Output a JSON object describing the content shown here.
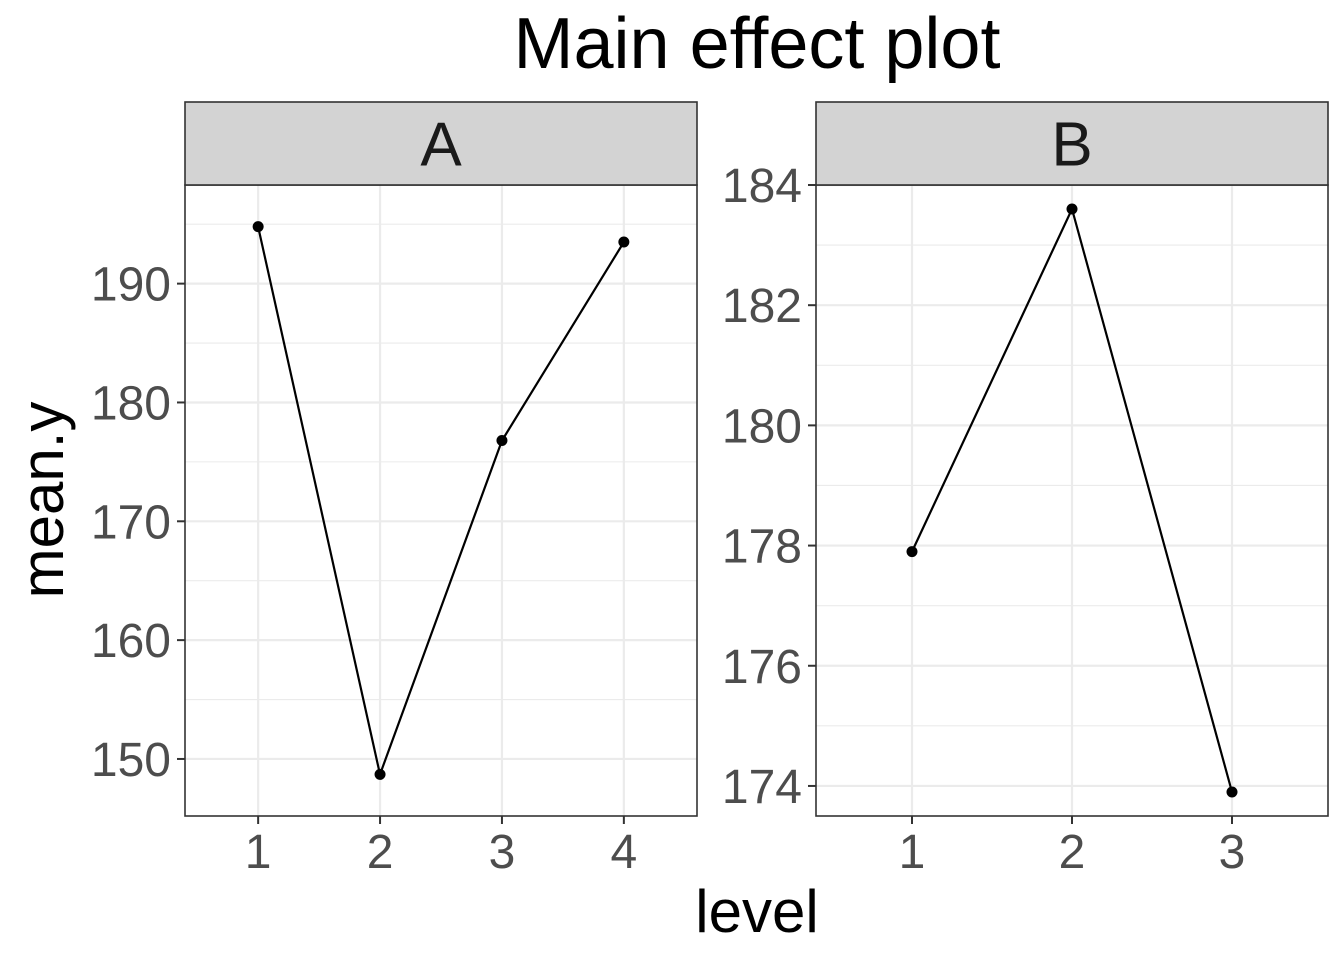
{
  "title": "Main effect plot",
  "xlabel": "level",
  "ylabel": "mean.y",
  "chart_data": {
    "type": "line",
    "title": "Main effect plot",
    "xlabel": "level",
    "ylabel": "mean.y",
    "grid": true,
    "facets": [
      {
        "strip_label": "A",
        "x": [
          1,
          2,
          3,
          4
        ],
        "x_ticks": [
          "1",
          "2",
          "3",
          "4"
        ],
        "y": [
          194.8,
          148.7,
          176.8,
          193.5
        ],
        "y_ticks": [
          150,
          160,
          170,
          180,
          190
        ],
        "y_tick_labels": [
          "150",
          "160",
          "170",
          "180",
          "190"
        ],
        "xlim": [
          0.4,
          4.6
        ],
        "ylim": [
          145.2,
          198.3
        ]
      },
      {
        "strip_label": "B",
        "x": [
          1,
          2,
          3
        ],
        "x_ticks": [
          "1",
          "2",
          "3"
        ],
        "y": [
          177.9,
          183.6,
          173.9
        ],
        "y_ticks": [
          174,
          176,
          178,
          180,
          182,
          184
        ],
        "y_tick_labels": [
          "174",
          "176",
          "178",
          "180",
          "182",
          "184"
        ],
        "xlim": [
          0.4,
          3.6
        ],
        "ylim": [
          173.5,
          184.0
        ]
      }
    ]
  }
}
